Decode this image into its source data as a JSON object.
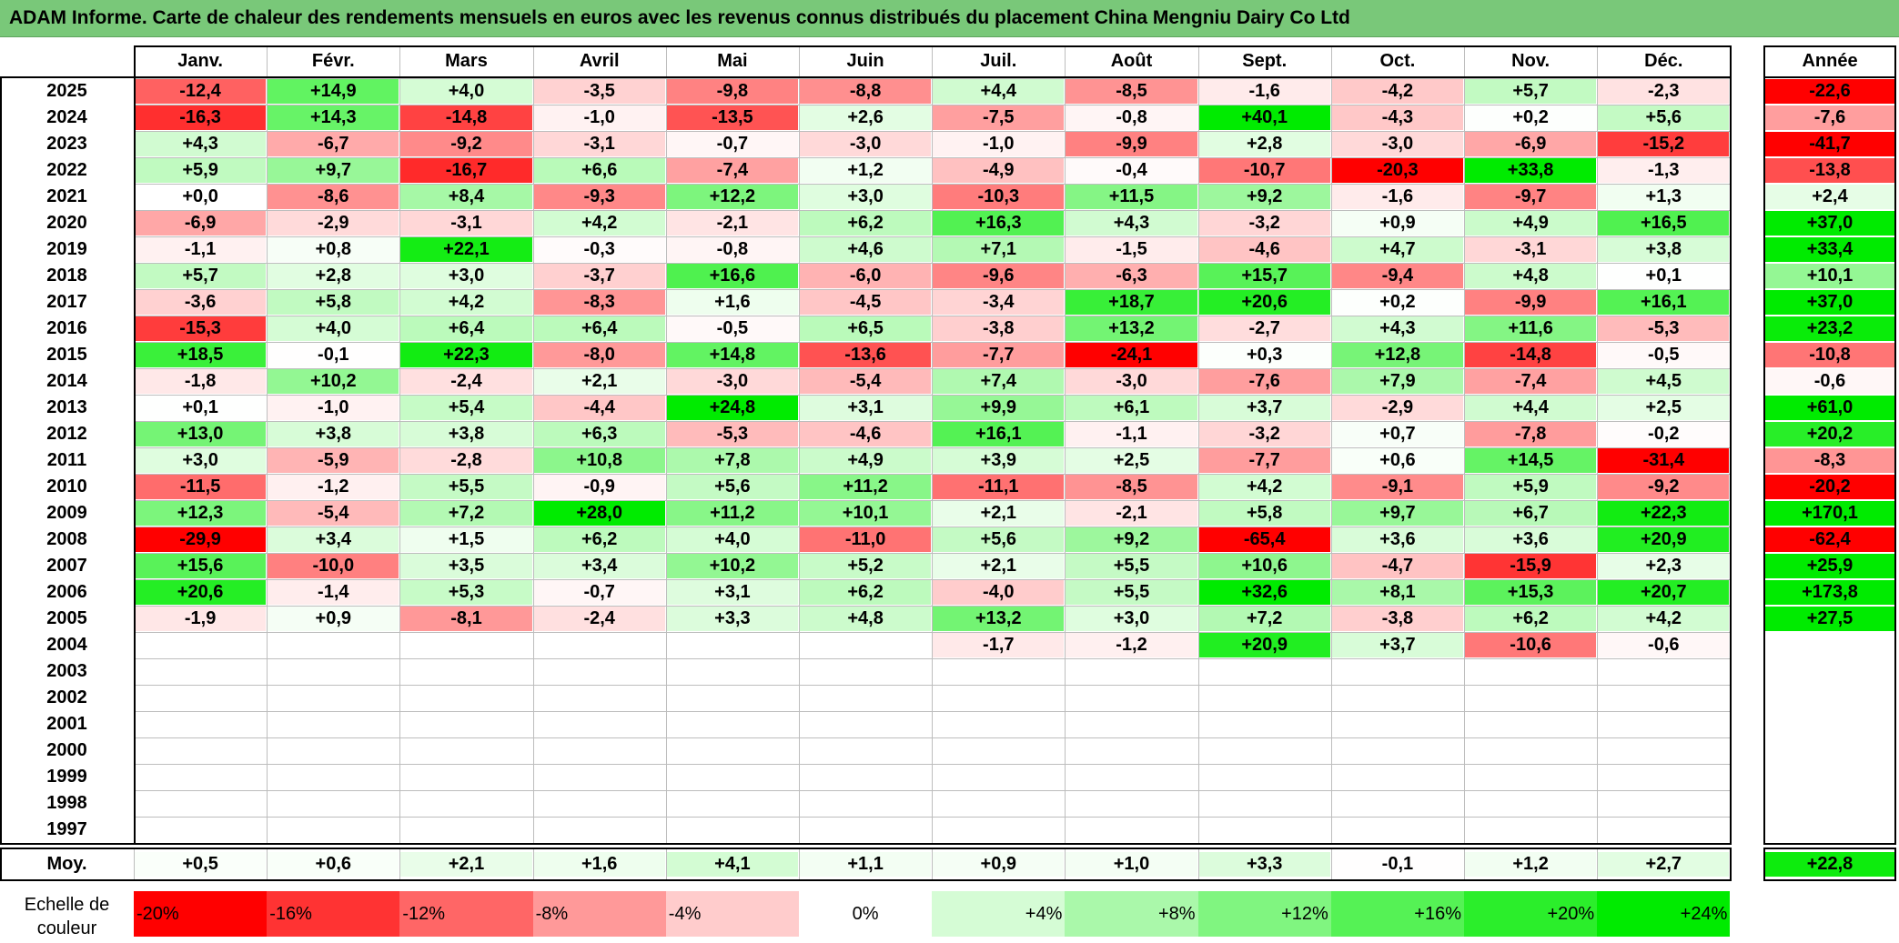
{
  "title": "ADAM Informe. Carte de chaleur des rendements mensuels en euros avec les revenus connus distribués du placement China Mengniu Dairy Co Ltd",
  "chart_data": {
    "type": "heatmap",
    "title": "ADAM Informe. Carte de chaleur des rendements mensuels en euros avec les revenus connus distribués du placement China Mengniu Dairy Co Ltd",
    "months": [
      "Janv.",
      "Févr.",
      "Mars",
      "Avril",
      "Mai",
      "Juin",
      "Juil.",
      "Août",
      "Sept.",
      "Oct.",
      "Nov.",
      "Déc."
    ],
    "annual_header": "Année",
    "average_label": "Moy.",
    "rows": [
      {
        "year": "2025",
        "values": [
          "-12,4",
          "+14,9",
          "+4,0",
          "-3,5",
          "-9,8",
          "-8,8",
          "+4,4",
          "-8,5",
          "-1,6",
          "-4,2",
          "+5,7",
          "-2,3"
        ],
        "annual": "-22,6"
      },
      {
        "year": "2024",
        "values": [
          "-16,3",
          "+14,3",
          "-14,8",
          "-1,0",
          "-13,5",
          "+2,6",
          "-7,5",
          "-0,8",
          "+40,1",
          "-4,3",
          "+0,2",
          "+5,6"
        ],
        "annual": "-7,6"
      },
      {
        "year": "2023",
        "values": [
          "+4,3",
          "-6,7",
          "-9,2",
          "-3,1",
          "-0,7",
          "-3,0",
          "-1,0",
          "-9,9",
          "+2,8",
          "-3,0",
          "-6,9",
          "-15,2"
        ],
        "annual": "-41,7"
      },
      {
        "year": "2022",
        "values": [
          "+5,9",
          "+9,7",
          "-16,7",
          "+6,6",
          "-7,4",
          "+1,2",
          "-4,9",
          "-0,4",
          "-10,7",
          "-20,3",
          "+33,8",
          "-1,3"
        ],
        "annual": "-13,8"
      },
      {
        "year": "2021",
        "values": [
          "+0,0",
          "-8,6",
          "+8,4",
          "-9,3",
          "+12,2",
          "+3,0",
          "-10,3",
          "+11,5",
          "+9,2",
          "-1,6",
          "-9,7",
          "+1,3"
        ],
        "annual": "+2,4"
      },
      {
        "year": "2020",
        "values": [
          "-6,9",
          "-2,9",
          "-3,1",
          "+4,2",
          "-2,1",
          "+6,2",
          "+16,3",
          "+4,3",
          "-3,2",
          "+0,9",
          "+4,9",
          "+16,5"
        ],
        "annual": "+37,0"
      },
      {
        "year": "2019",
        "values": [
          "-1,1",
          "+0,8",
          "+22,1",
          "-0,3",
          "-0,8",
          "+4,6",
          "+7,1",
          "-1,5",
          "-4,6",
          "+4,7",
          "-3,1",
          "+3,8"
        ],
        "annual": "+33,4"
      },
      {
        "year": "2018",
        "values": [
          "+5,7",
          "+2,8",
          "+3,0",
          "-3,7",
          "+16,6",
          "-6,0",
          "-9,6",
          "-6,3",
          "+15,7",
          "-9,4",
          "+4,8",
          "+0,1"
        ],
        "annual": "+10,1"
      },
      {
        "year": "2017",
        "values": [
          "-3,6",
          "+5,8",
          "+4,2",
          "-8,3",
          "+1,6",
          "-4,5",
          "-3,4",
          "+18,7",
          "+20,6",
          "+0,2",
          "-9,9",
          "+16,1"
        ],
        "annual": "+37,0"
      },
      {
        "year": "2016",
        "values": [
          "-15,3",
          "+4,0",
          "+6,4",
          "+6,4",
          "-0,5",
          "+6,5",
          "-3,8",
          "+13,2",
          "-2,7",
          "+4,3",
          "+11,6",
          "-5,3"
        ],
        "annual": "+23,2"
      },
      {
        "year": "2015",
        "values": [
          "+18,5",
          "-0,1",
          "+22,3",
          "-8,0",
          "+14,8",
          "-13,6",
          "-7,7",
          "-24,1",
          "+0,3",
          "+12,8",
          "-14,8",
          "-0,5"
        ],
        "annual": "-10,8"
      },
      {
        "year": "2014",
        "values": [
          "-1,8",
          "+10,2",
          "-2,4",
          "+2,1",
          "-3,0",
          "-5,4",
          "+7,4",
          "-3,0",
          "-7,6",
          "+7,9",
          "-7,4",
          "+4,5"
        ],
        "annual": "-0,6"
      },
      {
        "year": "2013",
        "values": [
          "+0,1",
          "-1,0",
          "+5,4",
          "-4,4",
          "+24,8",
          "+3,1",
          "+9,9",
          "+6,1",
          "+3,7",
          "-2,9",
          "+4,4",
          "+2,5"
        ],
        "annual": "+61,0"
      },
      {
        "year": "2012",
        "values": [
          "+13,0",
          "+3,8",
          "+3,8",
          "+6,3",
          "-5,3",
          "-4,6",
          "+16,1",
          "-1,1",
          "-3,2",
          "+0,7",
          "-7,8",
          "-0,2"
        ],
        "annual": "+20,2"
      },
      {
        "year": "2011",
        "values": [
          "+3,0",
          "-5,9",
          "-2,8",
          "+10,8",
          "+7,8",
          "+4,9",
          "+3,9",
          "+2,5",
          "-7,7",
          "+0,6",
          "+14,5",
          "-31,4"
        ],
        "annual": "-8,3"
      },
      {
        "year": "2010",
        "values": [
          "-11,5",
          "-1,2",
          "+5,5",
          "-0,9",
          "+5,6",
          "+11,2",
          "-11,1",
          "-8,5",
          "+4,2",
          "-9,1",
          "+5,9",
          "-9,2"
        ],
        "annual": "-20,2"
      },
      {
        "year": "2009",
        "values": [
          "+12,3",
          "-5,4",
          "+7,2",
          "+28,0",
          "+11,2",
          "+10,1",
          "+2,1",
          "-2,1",
          "+5,8",
          "+9,7",
          "+6,7",
          "+22,3"
        ],
        "annual": "+170,1"
      },
      {
        "year": "2008",
        "values": [
          "-29,9",
          "+3,4",
          "+1,5",
          "+6,2",
          "+4,0",
          "-11,0",
          "+5,6",
          "+9,2",
          "-65,4",
          "+3,6",
          "+3,6",
          "+20,9"
        ],
        "annual": "-62,4"
      },
      {
        "year": "2007",
        "values": [
          "+15,6",
          "-10,0",
          "+3,5",
          "+3,4",
          "+10,2",
          "+5,2",
          "+2,1",
          "+5,5",
          "+10,6",
          "-4,7",
          "-15,9",
          "+2,3"
        ],
        "annual": "+25,9"
      },
      {
        "year": "2006",
        "values": [
          "+20,6",
          "-1,4",
          "+5,3",
          "-0,7",
          "+3,1",
          "+6,2",
          "-4,0",
          "+5,5",
          "+32,6",
          "+8,1",
          "+15,3",
          "+20,7"
        ],
        "annual": "+173,8"
      },
      {
        "year": "2005",
        "values": [
          "-1,9",
          "+0,9",
          "-8,1",
          "-2,4",
          "+3,3",
          "+4,8",
          "+13,2",
          "+3,0",
          "+7,2",
          "-3,8",
          "+6,2",
          "+4,2"
        ],
        "annual": "+27,5"
      },
      {
        "year": "2004",
        "values": [
          "",
          "",
          "",
          "",
          "",
          "",
          "-1,7",
          "-1,2",
          "+20,9",
          "+3,7",
          "-10,6",
          "-0,6"
        ],
        "annual": ""
      },
      {
        "year": "2003",
        "values": [
          "",
          "",
          "",
          "",
          "",
          "",
          "",
          "",
          "",
          "",
          "",
          ""
        ],
        "annual": ""
      },
      {
        "year": "2002",
        "values": [
          "",
          "",
          "",
          "",
          "",
          "",
          "",
          "",
          "",
          "",
          "",
          ""
        ],
        "annual": ""
      },
      {
        "year": "2001",
        "values": [
          "",
          "",
          "",
          "",
          "",
          "",
          "",
          "",
          "",
          "",
          "",
          ""
        ],
        "annual": ""
      },
      {
        "year": "2000",
        "values": [
          "",
          "",
          "",
          "",
          "",
          "",
          "",
          "",
          "",
          "",
          "",
          ""
        ],
        "annual": ""
      },
      {
        "year": "1999",
        "values": [
          "",
          "",
          "",
          "",
          "",
          "",
          "",
          "",
          "",
          "",
          "",
          ""
        ],
        "annual": ""
      },
      {
        "year": "1998",
        "values": [
          "",
          "",
          "",
          "",
          "",
          "",
          "",
          "",
          "",
          "",
          "",
          ""
        ],
        "annual": ""
      },
      {
        "year": "1997",
        "values": [
          "",
          "",
          "",
          "",
          "",
          "",
          "",
          "",
          "",
          "",
          "",
          ""
        ],
        "annual": ""
      }
    ],
    "average": {
      "values": [
        "+0,5",
        "+0,6",
        "+2,1",
        "+1,6",
        "+4,1",
        "+1,1",
        "+0,9",
        "+1,0",
        "+3,3",
        "-0,1",
        "+1,2",
        "+2,7"
      ],
      "annual": "+22,8"
    },
    "scale_label_line1": "Echelle de",
    "scale_label_line2": "couleur",
    "scale": [
      "-20%",
      "-16%",
      "-12%",
      "-8%",
      "-4%",
      "0%",
      "+4%",
      "+8%",
      "+12%",
      "+16%",
      "+20%",
      "+24%"
    ],
    "colors": {
      "negative_max": "#ff0000",
      "positive_max": "#00e600",
      "neutral": "#ffffff",
      "title_bg": "#79c879"
    }
  }
}
